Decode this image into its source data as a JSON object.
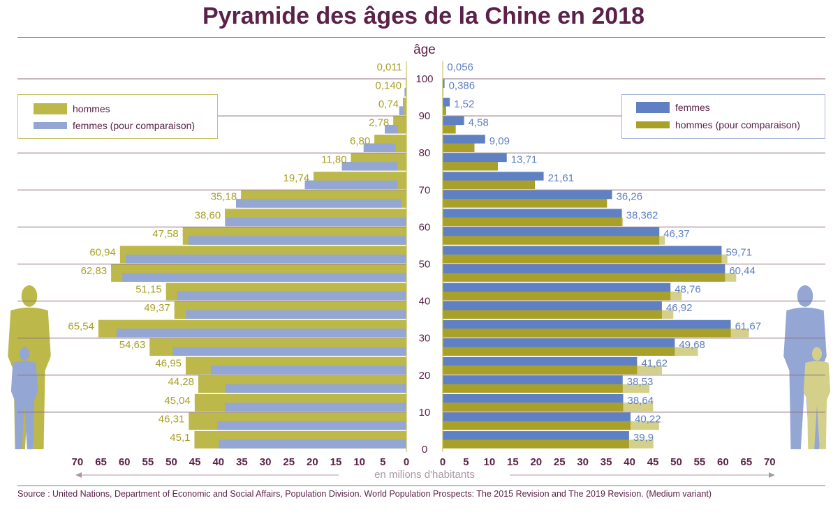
{
  "title": "Pyramide des âges de la Chine en 2018",
  "source": "Source : United Nations, Department of Economic and Social Affairs, Population Division. World Population Prospects: The 2015 Revision and The 2019 Revision. (Medium variant)",
  "colors": {
    "men": "#bcb84a",
    "women": "#5f80c2",
    "men_compare": "#a8a028",
    "women_compare": "#93a6d4",
    "grid": "#8c6d80",
    "axis_text": "#5b2148",
    "men_label": "#a8a028",
    "women_label": "#5f80c2"
  },
  "legend_left": {
    "men": "hommes",
    "women_compare": "femmes (pour comparaison)"
  },
  "legend_right": {
    "women": "femmes",
    "men_compare": "hommes (pour comparaison)"
  },
  "chart_data": {
    "type": "bar",
    "orientation": "horizontal-pyramid",
    "title": "Pyramide des âges de la Chine en 2018",
    "age_axis_label": "âge",
    "x_axis_label": "en milions d'habitants",
    "age_ticks": [
      "0",
      "10",
      "20",
      "30",
      "40",
      "50",
      "60",
      "70",
      "80",
      "90",
      "100"
    ],
    "x_ticks_left": [
      "70",
      "65",
      "60",
      "55",
      "50",
      "45",
      "40",
      "35",
      "30",
      "25",
      "20",
      "15",
      "10",
      "5",
      "0"
    ],
    "x_ticks_right": [
      "0",
      "5",
      "10",
      "15",
      "20",
      "25",
      "30",
      "35",
      "40",
      "45",
      "50",
      "55",
      "60",
      "65",
      "70"
    ],
    "xlim": [
      0,
      70
    ],
    "age_groups": [
      "0-4",
      "5-9",
      "10-14",
      "15-19",
      "20-24",
      "25-29",
      "30-34",
      "35-39",
      "40-44",
      "45-49",
      "50-54",
      "55-59",
      "60-64",
      "65-69",
      "70-74",
      "75-79",
      "80-84",
      "85-89",
      "90-94",
      "95-99",
      "100+"
    ],
    "series": [
      {
        "name": "hommes",
        "values": [
          45.1,
          46.31,
          45.04,
          44.28,
          46.95,
          54.63,
          65.54,
          49.37,
          51.15,
          62.83,
          60.94,
          47.58,
          38.6,
          35.18,
          19.74,
          11.8,
          6.8,
          2.78,
          0.74,
          0.14,
          0.011
        ],
        "labels": [
          "45,1",
          "46,31",
          "45,04",
          "44,28",
          "46,95",
          "54,63",
          "65,54",
          "49,37",
          "51,15",
          "62,83",
          "60,94",
          "47,58",
          "38,60",
          "35,18",
          "19,74",
          "11,80",
          "6,80",
          "2,78",
          "0,74",
          "0,140",
          "0,011"
        ]
      },
      {
        "name": "femmes",
        "values": [
          39.9,
          40.22,
          38.64,
          38.53,
          41.62,
          49.68,
          61.67,
          46.92,
          48.76,
          60.44,
          59.71,
          46.37,
          38.362,
          36.26,
          21.61,
          13.71,
          9.09,
          4.58,
          1.52,
          0.386,
          0.056
        ],
        "labels": [
          "39,9",
          "40,22",
          "38,64",
          "38,53",
          "41,62",
          "49,68",
          "61,67",
          "46,92",
          "48,76",
          "60,44",
          "59,71",
          "46,37",
          "38,362",
          "36,26",
          "21,61",
          "13,71",
          "9,09",
          "4,58",
          "1,52",
          "0,386",
          "0,056"
        ]
      }
    ]
  }
}
